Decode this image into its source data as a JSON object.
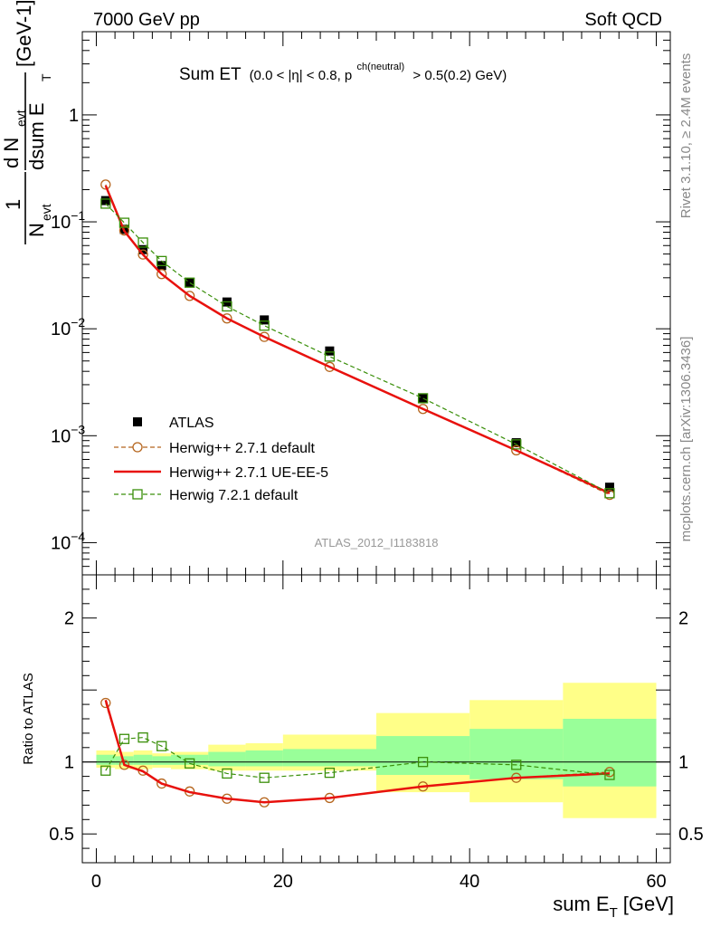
{
  "header": {
    "left": "7000 GeV pp",
    "right": "Soft QCD"
  },
  "side_text": {
    "rivet": "Rivet 3.1.10, ≥ 2.4M events",
    "source": "mcplots.cern.ch [arXiv:1306.3436]"
  },
  "plot_title": {
    "main": "Sum ET",
    "sub_a": "(0.0 < |η| < 0.8, p",
    "sup": "ch(neutral)",
    "sub_b": "> 0.5(0.2) GeV)"
  },
  "analysis_id": "ATLAS_2012_I1183818",
  "colors": {
    "data": "#000000",
    "herwigpp_default": "#b5651d",
    "herwigpp_ueee5": "#e8110d",
    "herwig7_default": "#3a8f0a",
    "band_outer": "#ffff88",
    "band_inner": "#99ff99"
  },
  "chart_data": [
    {
      "type": "scatter",
      "panel": "main",
      "log_y": true,
      "ylim": [
        5e-05,
        6
      ],
      "xlim": [
        -1.5,
        61.5
      ],
      "ylabel": {
        "frac_num": "1",
        "frac_den_N": "N",
        "frac_den_sub": "evt",
        "d_num": "d N",
        "d_num_sub": "evt",
        "d_den": "dsum E",
        "d_den_sub": "T",
        "unit": "[GeV",
        "unit_sup": "-1",
        "unit_close": "]"
      },
      "yticks": [
        {
          "v": 0.0001,
          "base": "10",
          "exp": "−4"
        },
        {
          "v": 0.001,
          "base": "10",
          "exp": "−3"
        },
        {
          "v": 0.01,
          "base": "10",
          "exp": "−2"
        },
        {
          "v": 0.1,
          "base": "10",
          "exp": "−1"
        },
        {
          "v": 1,
          "base": "1",
          "exp": ""
        }
      ],
      "x": [
        1,
        3,
        5,
        7,
        10,
        14,
        18,
        25,
        35,
        45,
        55
      ],
      "series": [
        {
          "name": "ATLAS",
          "marker": "square-filled",
          "color": "#000000",
          "values": [
            0.158,
            0.085,
            0.055,
            0.039,
            0.027,
            0.0178,
            0.0121,
            0.0062,
            0.00225,
            0.00086,
            0.00033
          ]
        },
        {
          "name": "Herwig++ 2.7.1 default",
          "marker": "circle-open",
          "line": "dashed",
          "color": "#b5651d",
          "values": [
            0.223,
            0.083,
            0.0495,
            0.0325,
            0.0203,
            0.0125,
            0.0084,
            0.0044,
            0.00178,
            0.00073,
            0.00028
          ]
        },
        {
          "name": "Herwig++ 2.7.1 UE-EE-5",
          "marker": "none",
          "line": "solid",
          "color": "#e8110d",
          "values": [
            0.218,
            0.082,
            0.0495,
            0.0325,
            0.0203,
            0.0125,
            0.0084,
            0.0044,
            0.00178,
            0.00073,
            0.00029
          ]
        },
        {
          "name": "Herwig 7.2.1 default",
          "marker": "square-open",
          "line": "dashed",
          "color": "#3a8f0a",
          "values": [
            0.148,
            0.098,
            0.064,
            0.043,
            0.027,
            0.0162,
            0.0107,
            0.0055,
            0.00224,
            0.00083,
            0.00029
          ]
        }
      ]
    },
    {
      "type": "line",
      "panel": "ratio",
      "ylim": [
        0.3,
        2.3
      ],
      "xlim": [
        -1.5,
        61.5
      ],
      "xlabel": {
        "main": "sum E",
        "sub": "T",
        "unit": "[GeV]"
      },
      "ylabel": "Ratio to ATLAS",
      "xticks": [
        0,
        20,
        40,
        60
      ],
      "yticks": [
        0.5,
        1,
        2
      ],
      "reference_line": 1,
      "bands": {
        "bin_edges": [
          0,
          2,
          4,
          6,
          8,
          12,
          16,
          20,
          30,
          40,
          50,
          60
        ],
        "outer": [
          [
            0.96,
            1.08
          ],
          [
            0.95,
            1.07
          ],
          [
            0.95,
            1.08
          ],
          [
            0.96,
            1.06
          ],
          [
            0.95,
            1.07
          ],
          [
            0.94,
            1.12
          ],
          [
            0.94,
            1.13
          ],
          [
            0.94,
            1.19
          ],
          [
            0.79,
            1.34
          ],
          [
            0.72,
            1.43
          ],
          [
            0.61,
            1.55
          ]
        ],
        "inner": [
          [
            0.98,
            1.05
          ],
          [
            0.98,
            1.04
          ],
          [
            0.98,
            1.05
          ],
          [
            0.98,
            1.04
          ],
          [
            0.98,
            1.05
          ],
          [
            0.97,
            1.07
          ],
          [
            0.97,
            1.08
          ],
          [
            0.97,
            1.09
          ],
          [
            0.91,
            1.18
          ],
          [
            0.88,
            1.23
          ],
          [
            0.83,
            1.3
          ]
        ]
      },
      "x": [
        1,
        3,
        5,
        7,
        10,
        14,
        18,
        25,
        35,
        45,
        55
      ],
      "series": [
        {
          "name": "Herwig++ 2.7.1 default",
          "marker": "circle-open",
          "line": "dashed",
          "color": "#b5651d",
          "values": [
            1.41,
            0.98,
            0.94,
            0.85,
            0.795,
            0.745,
            0.72,
            0.75,
            0.83,
            0.89,
            0.93
          ]
        },
        {
          "name": "Herwig++ 2.7.1 UE-EE-5",
          "marker": "none",
          "line": "solid",
          "color": "#e8110d",
          "values": [
            1.43,
            0.98,
            0.935,
            0.85,
            0.79,
            0.745,
            0.72,
            0.75,
            0.83,
            0.89,
            0.92
          ]
        },
        {
          "name": "Herwig 7.2.1 default",
          "marker": "square-open",
          "line": "dashed",
          "color": "#3a8f0a",
          "values": [
            0.94,
            1.16,
            1.17,
            1.11,
            0.99,
            0.92,
            0.89,
            0.925,
            1.0,
            0.98,
            0.91
          ]
        }
      ]
    }
  ]
}
